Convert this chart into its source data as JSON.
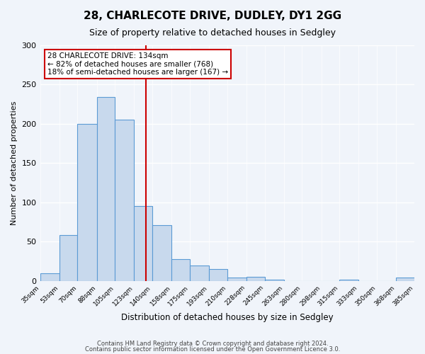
{
  "title": "28, CHARLECOTE DRIVE, DUDLEY, DY1 2GG",
  "subtitle": "Size of property relative to detached houses in Sedgley",
  "xlabel": "Distribution of detached houses by size in Sedgley",
  "ylabel": "Number of detached properties",
  "footer_lines": [
    "Contains HM Land Registry data © Crown copyright and database right 2024.",
    "Contains public sector information licensed under the Open Government Licence 3.0."
  ],
  "bin_labels": [
    "35sqm",
    "53sqm",
    "70sqm",
    "88sqm",
    "105sqm",
    "123sqm",
    "140sqm",
    "158sqm",
    "175sqm",
    "193sqm",
    "210sqm",
    "228sqm",
    "245sqm",
    "263sqm",
    "280sqm",
    "298sqm",
    "315sqm",
    "333sqm",
    "350sqm",
    "368sqm",
    "385sqm"
  ],
  "bin_edges": [
    35,
    53,
    70,
    88,
    105,
    123,
    140,
    158,
    175,
    193,
    210,
    228,
    245,
    263,
    280,
    298,
    315,
    333,
    350,
    368,
    385
  ],
  "bar_heights": [
    10,
    58,
    200,
    234,
    205,
    95,
    71,
    28,
    20,
    15,
    4,
    5,
    2,
    0,
    0,
    0,
    2,
    0,
    0,
    4
  ],
  "bar_color": "#c8d9ed",
  "bar_edge_color": "#5b9bd5",
  "marker_value": 134,
  "marker_color": "#cc0000",
  "annotation_title": "28 CHARLECOTE DRIVE: 134sqm",
  "annotation_line1": "← 82% of detached houses are smaller (768)",
  "annotation_line2": "18% of semi-detached houses are larger (167) →",
  "annotation_box_color": "#cc0000",
  "ylim": [
    0,
    300
  ],
  "yticks": [
    0,
    50,
    100,
    150,
    200,
    250,
    300
  ],
  "background_color": "#f0f4fa",
  "plot_bg_color": "#f0f4fa"
}
